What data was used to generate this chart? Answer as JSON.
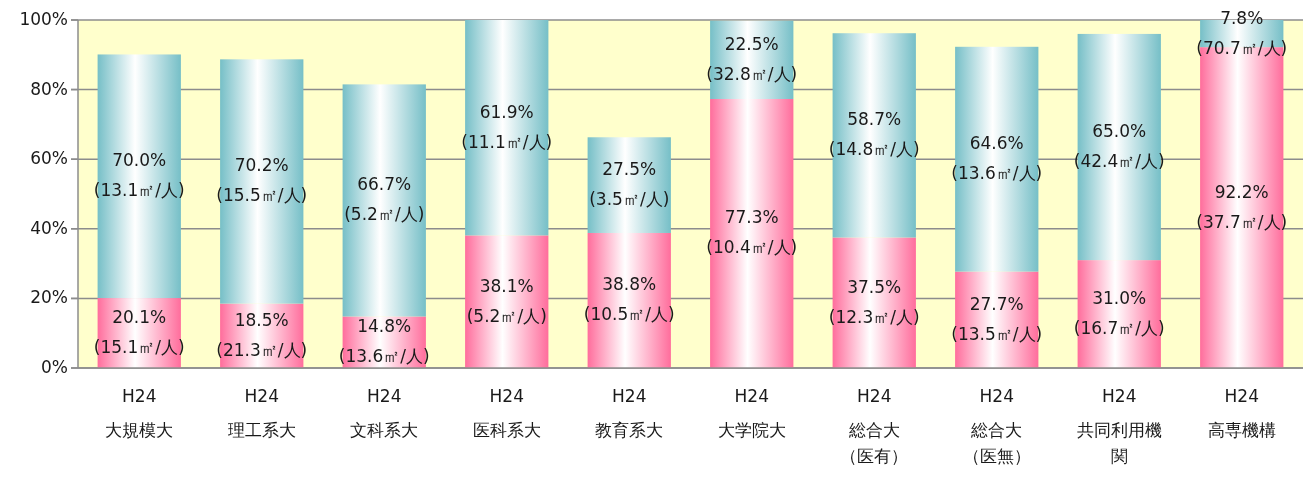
{
  "chart_data": {
    "type": "bar",
    "stacked": true,
    "categories": [
      "H24\n大規模大",
      "H24\n理工系大",
      "H24\n文科系大",
      "H24\n医科系大",
      "H24\n教育系大",
      "H24\n大学院大",
      "H24\n総合大（医有）",
      "H24\n総合大（医無）",
      "H24\n共同利用機関",
      "H24\n高専機構"
    ],
    "series": [
      {
        "color": "#ff6d9c",
        "values": [
          20.1,
          18.5,
          14.8,
          38.1,
          38.8,
          77.3,
          37.5,
          27.7,
          31.0,
          92.2
        ],
        "value_labels": [
          "20.1%\n(15.1㎡/人)",
          "18.5%\n(21.3㎡/人)",
          "14.8%\n(13.6㎡/人)",
          "38.1%\n(5.2㎡/人)",
          "38.8%\n(10.5㎡/人)",
          "77.3%\n(10.4㎡/人)",
          "37.5%\n(12.3㎡/人)",
          "27.7%\n(13.5㎡/人)",
          "31.0%\n(16.7㎡/人)",
          "92.2%\n(37.7㎡/人)"
        ]
      },
      {
        "color": "#76bfc7",
        "values": [
          70.0,
          70.2,
          66.7,
          61.9,
          27.5,
          22.5,
          58.7,
          64.6,
          65.0,
          7.8
        ],
        "value_labels": [
          "70.0%\n(13.1㎡/人)",
          "70.2%\n(15.5㎡/人)",
          "66.7%\n(5.2㎡/人)",
          "61.9%\n(11.1㎡/人)",
          "27.5%\n(3.5㎡/人)",
          "22.5%\n(32.8㎡/人)",
          "58.7%\n(14.8㎡/人)",
          "64.6%\n(13.6㎡/人)",
          "65.0%\n(42.4㎡/人)",
          "7.8%\n(70.7㎡/人)"
        ]
      }
    ],
    "ylim": [
      0,
      100
    ],
    "yticks": [
      {
        "value": 0,
        "label": "0%"
      },
      {
        "value": 20,
        "label": "20%"
      },
      {
        "value": 40,
        "label": "40%"
      },
      {
        "value": 60,
        "label": "60%"
      },
      {
        "value": 80,
        "label": "80%"
      },
      {
        "value": 100,
        "label": "100%"
      }
    ],
    "grid": "y"
  }
}
